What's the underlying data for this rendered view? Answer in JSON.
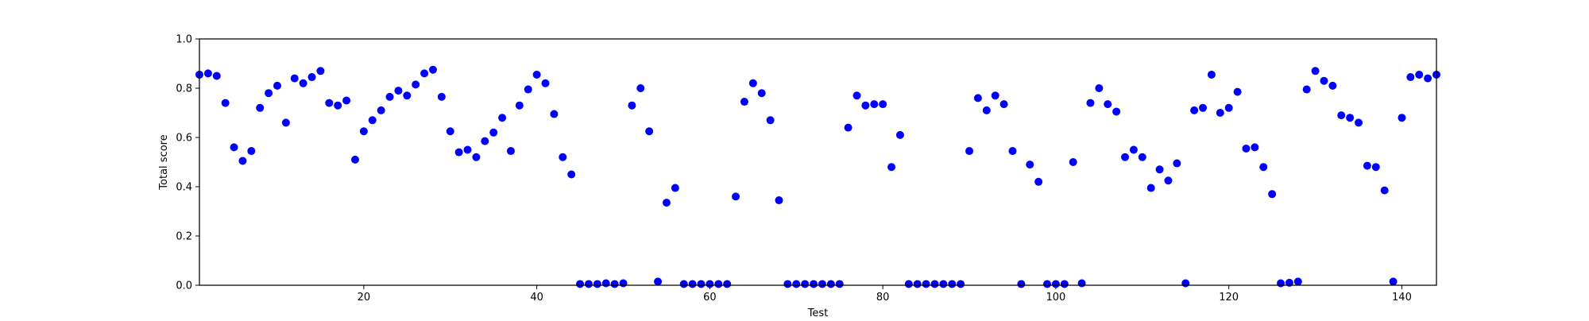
{
  "chart_data": {
    "type": "scatter",
    "title": "",
    "xlabel": "Test",
    "ylabel": "Total score",
    "xlim": [
      1,
      144
    ],
    "ylim": [
      0.0,
      1.0
    ],
    "xticks": [
      20,
      40,
      60,
      80,
      100,
      120,
      140
    ],
    "xtick_labels": [
      "20",
      "40",
      "60",
      "80",
      "100",
      "120",
      "140"
    ],
    "yticks": [
      0.0,
      0.2,
      0.4,
      0.6,
      0.8,
      1.0
    ],
    "ytick_labels": [
      "0.0",
      "0.2",
      "0.4",
      "0.6",
      "0.8",
      "1.0"
    ],
    "grid": false,
    "marker_color": "#0000ff",
    "series": [
      {
        "x": [
          1,
          2,
          3,
          4,
          5,
          6,
          7,
          8,
          9,
          10,
          11,
          12,
          13,
          14,
          15,
          16,
          17,
          18,
          19,
          20,
          21,
          22,
          23,
          24,
          25,
          26,
          27,
          28,
          29,
          30,
          31,
          32,
          33,
          34,
          35,
          36,
          37,
          38,
          39,
          40,
          41,
          42,
          43,
          44,
          45,
          46,
          47,
          48,
          49,
          50,
          51,
          52,
          53,
          54,
          55,
          56,
          57,
          58,
          59,
          60,
          61,
          62,
          63,
          64,
          65,
          66,
          67,
          68,
          69,
          70,
          71,
          72,
          73,
          74,
          75,
          76,
          77,
          78,
          79,
          80,
          81,
          82,
          83,
          84,
          85,
          86,
          87,
          88,
          89,
          90,
          91,
          92,
          93,
          94,
          95,
          96,
          97,
          98,
          99,
          100,
          101,
          102,
          103,
          104,
          105,
          106,
          107,
          108,
          109,
          110,
          111,
          112,
          113,
          114,
          115,
          116,
          117,
          118,
          119,
          120,
          121,
          122,
          123,
          124,
          125,
          126,
          127,
          128,
          129,
          130,
          131,
          132,
          133,
          134,
          135,
          136,
          137,
          138,
          139,
          140,
          141,
          142,
          143,
          144
        ],
        "values": [
          0.855,
          0.86,
          0.85,
          0.74,
          0.56,
          0.505,
          0.545,
          0.72,
          0.78,
          0.81,
          0.66,
          0.84,
          0.82,
          0.845,
          0.87,
          0.74,
          0.73,
          0.75,
          0.51,
          0.625,
          0.67,
          0.71,
          0.765,
          0.79,
          0.77,
          0.815,
          0.86,
          0.875,
          0.765,
          0.625,
          0.54,
          0.55,
          0.52,
          0.585,
          0.62,
          0.68,
          0.545,
          0.73,
          0.795,
          0.855,
          0.82,
          0.695,
          0.52,
          0.45,
          0.005,
          0.005,
          0.005,
          0.008,
          0.005,
          0.008,
          0.73,
          0.8,
          0.625,
          0.015,
          0.335,
          0.395,
          0.005,
          0.005,
          0.005,
          0.005,
          0.005,
          0.005,
          0.36,
          0.745,
          0.82,
          0.78,
          0.67,
          0.345,
          0.005,
          0.005,
          0.005,
          0.005,
          0.005,
          0.005,
          0.005,
          0.64,
          0.77,
          0.73,
          0.735,
          0.735,
          0.48,
          0.61,
          0.005,
          0.005,
          0.005,
          0.005,
          0.005,
          0.005,
          0.005,
          0.545,
          0.76,
          0.71,
          0.77,
          0.735,
          0.545,
          0.005,
          0.49,
          0.42,
          0.005,
          0.005,
          0.005,
          0.5,
          0.008,
          0.74,
          0.8,
          0.735,
          0.705,
          0.52,
          0.55,
          0.52,
          0.395,
          0.47,
          0.425,
          0.495,
          0.008,
          0.71,
          0.72,
          0.855,
          0.7,
          0.72,
          0.785,
          0.555,
          0.56,
          0.48,
          0.37,
          0.008,
          0.01,
          0.015,
          0.795,
          0.87,
          0.83,
          0.81,
          0.69,
          0.68,
          0.66,
          0.485,
          0.48,
          0.385,
          0.015,
          0.68,
          0.845,
          0.855,
          0.84,
          0.855
        ]
      }
    ]
  }
}
